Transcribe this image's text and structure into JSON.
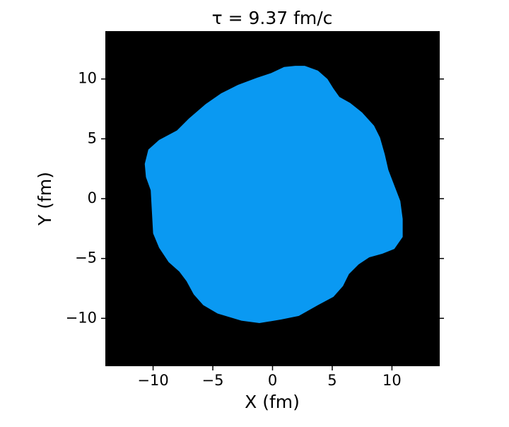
{
  "chart_data": {
    "type": "region",
    "title": "τ =  9.37 fm/c",
    "x_label": "X (fm)",
    "y_label": "Y (fm)",
    "background": "#000000",
    "color": "#0a99f2",
    "x": [
      0.97,
      1.9,
      2.7,
      3.8,
      4.6,
      5.1,
      5.6,
      6.5,
      7.5,
      8.5,
      9.0,
      9.4,
      9.7,
      10.2,
      10.7,
      10.9,
      10.9,
      10.2,
      9.2,
      8.1,
      7.2,
      6.4,
      5.9,
      5.1,
      3.8,
      2.2,
      0.7,
      -1.1,
      -2.6,
      -4.6,
      -5.8,
      -6.6,
      -7.2,
      -7.8,
      -8.7,
      -9.5,
      -10.0,
      -10.1,
      -10.2,
      -10.6,
      -10.7,
      -10.4,
      -9.5,
      -8.0,
      -7.0,
      -5.6,
      -4.3,
      -2.9,
      -1.3,
      -0.1
    ],
    "y": [
      11.0,
      11.1,
      11.1,
      10.7,
      10.0,
      9.2,
      8.5,
      8.0,
      7.2,
      6.1,
      5.1,
      3.7,
      2.4,
      1.1,
      -0.2,
      -1.7,
      -3.2,
      -4.2,
      -4.6,
      -4.9,
      -5.5,
      -6.3,
      -7.3,
      -8.2,
      -8.9,
      -9.8,
      -10.1,
      -10.4,
      -10.2,
      -9.6,
      -8.9,
      -8.0,
      -6.9,
      -6.1,
      -5.3,
      -4.1,
      -2.9,
      -1.1,
      0.7,
      1.8,
      2.9,
      4.1,
      4.9,
      5.7,
      6.7,
      7.9,
      8.8,
      9.5,
      10.1,
      10.5
    ],
    "xlim": [
      -14,
      14
    ],
    "ylim": [
      -14,
      14
    ],
    "xticks": [
      {
        "value": -10,
        "label": "−10"
      },
      {
        "value": -5,
        "label": "−5"
      },
      0,
      5,
      10
    ],
    "yticks": [
      {
        "value": -10,
        "label": "−10"
      },
      {
        "value": -5,
        "label": "−5"
      },
      0,
      5,
      10
    ]
  }
}
